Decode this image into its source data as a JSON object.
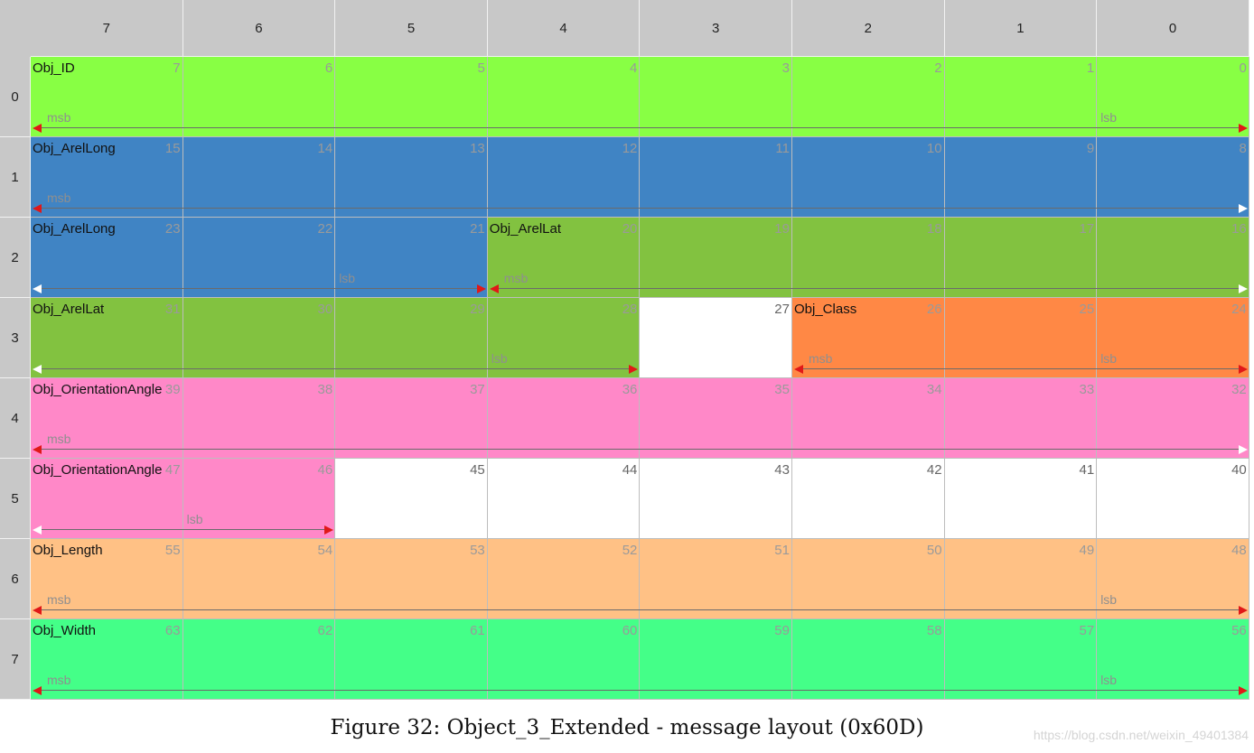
{
  "columns": [
    "7",
    "6",
    "5",
    "4",
    "3",
    "2",
    "1",
    "0"
  ],
  "rows": [
    "0",
    "1",
    "2",
    "3",
    "4",
    "5",
    "6",
    "7"
  ],
  "bit_numbers": [
    [
      "7",
      "6",
      "5",
      "4",
      "3",
      "2",
      "1",
      "0"
    ],
    [
      "15",
      "14",
      "13",
      "12",
      "11",
      "10",
      "9",
      "8"
    ],
    [
      "23",
      "22",
      "21",
      "20",
      "19",
      "18",
      "17",
      "16"
    ],
    [
      "31",
      "30",
      "29",
      "28",
      "27",
      "26",
      "25",
      "24"
    ],
    [
      "39",
      "38",
      "37",
      "36",
      "35",
      "34",
      "33",
      "32"
    ],
    [
      "47",
      "46",
      "45",
      "44",
      "43",
      "42",
      "41",
      "40"
    ],
    [
      "55",
      "54",
      "53",
      "52",
      "51",
      "50",
      "49",
      "48"
    ],
    [
      "63",
      "62",
      "61",
      "60",
      "59",
      "58",
      "57",
      "56"
    ]
  ],
  "signals": [
    {
      "name": "Obj_ID",
      "row": 0,
      "startCol": 0,
      "endCol": 7,
      "color": "#88ff44",
      "msb": "msb",
      "lsb": "lsb",
      "leftArrow": "red",
      "rightArrow": "red"
    },
    {
      "name": "Obj_ArelLong",
      "row": 1,
      "startCol": 0,
      "endCol": 7,
      "color": "#4084c4",
      "msb": "msb",
      "lsb": "",
      "leftArrow": "red",
      "rightArrow": "white"
    },
    {
      "name": "Obj_ArelLong",
      "row": 2,
      "startCol": 0,
      "endCol": 2,
      "color": "#4084c4",
      "msb": "",
      "lsb": "lsb",
      "leftArrow": "white",
      "rightArrow": "red"
    },
    {
      "name": "Obj_ArelLat",
      "row": 2,
      "startCol": 3,
      "endCol": 7,
      "color": "#82c240",
      "msb": "msb",
      "lsb": "",
      "leftArrow": "red",
      "rightArrow": "white"
    },
    {
      "name": "Obj_ArelLat",
      "row": 3,
      "startCol": 0,
      "endCol": 3,
      "color": "#82c240",
      "msb": "",
      "lsb": "lsb",
      "leftArrow": "white",
      "rightArrow": "red"
    },
    {
      "name": "Obj_Class",
      "row": 3,
      "startCol": 5,
      "endCol": 7,
      "color": "#ff8845",
      "msb": "msb",
      "lsb": "lsb",
      "leftArrow": "red",
      "rightArrow": "red"
    },
    {
      "name": "Obj_OrientationAngle",
      "row": 4,
      "startCol": 0,
      "endCol": 7,
      "color": "#ff88c8",
      "msb": "msb",
      "lsb": "",
      "leftArrow": "red",
      "rightArrow": "white"
    },
    {
      "name": "Obj_OrientationAngle",
      "row": 5,
      "startCol": 0,
      "endCol": 1,
      "color": "#ff88c8",
      "msb": "",
      "lsb": "lsb",
      "leftArrow": "white",
      "rightArrow": "red"
    },
    {
      "name": "Obj_Length",
      "row": 6,
      "startCol": 0,
      "endCol": 7,
      "color": "#ffc185",
      "msb": "msb",
      "lsb": "lsb",
      "leftArrow": "red",
      "rightArrow": "red"
    },
    {
      "name": "Obj_Width",
      "row": 7,
      "startCol": 0,
      "endCol": 7,
      "color": "#44ff88",
      "msb": "msb",
      "lsb": "lsb",
      "leftArrow": "red",
      "rightArrow": "red"
    }
  ],
  "caption": "Figure 32: Object_3_Extended - message layout (0x60D)",
  "watermark": "https://blog.csdn.net/weixin_49401384"
}
